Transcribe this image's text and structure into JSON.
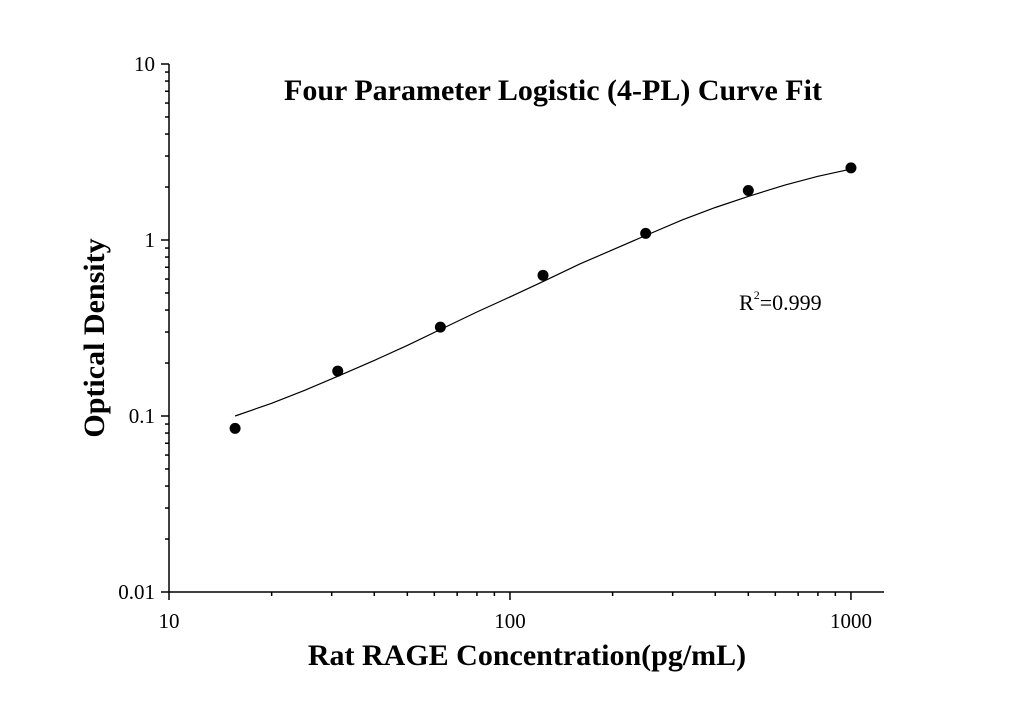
{
  "chart_data": {
    "type": "scatter",
    "title": "Four Parameter Logistic (4-PL) Curve Fit",
    "xlabel": "Rat RAGE Concentration(pg/mL)",
    "ylabel": "Optical Density",
    "x_scale": "log",
    "y_scale": "log",
    "xlim": [
      10,
      1250
    ],
    "ylim": [
      0.01,
      10
    ],
    "x_ticks": [
      10,
      100,
      1000
    ],
    "x_tick_labels": [
      "10",
      "100",
      "1000"
    ],
    "y_ticks": [
      0.01,
      0.1,
      1,
      10
    ],
    "y_tick_labels": [
      "0.01",
      "0.1",
      "1",
      "10"
    ],
    "grid": false,
    "series": [
      {
        "x": [
          15.625,
          31.25,
          62.5,
          125,
          250,
          500,
          1000
        ],
        "y": [
          0.085,
          0.18,
          0.32,
          0.63,
          1.09,
          1.91,
          2.57
        ]
      }
    ],
    "fit_curve": {
      "model": "4-PL",
      "x_range": [
        15.625,
        1000
      ],
      "points": [
        [
          15.625,
          0.1
        ],
        [
          20,
          0.118
        ],
        [
          25,
          0.14
        ],
        [
          31.25,
          0.168
        ],
        [
          40,
          0.207
        ],
        [
          50,
          0.252
        ],
        [
          62.5,
          0.31
        ],
        [
          80,
          0.39
        ],
        [
          100,
          0.475
        ],
        [
          125,
          0.58
        ],
        [
          160,
          0.73
        ],
        [
          200,
          0.88
        ],
        [
          250,
          1.06
        ],
        [
          320,
          1.3
        ],
        [
          400,
          1.53
        ],
        [
          500,
          1.77
        ],
        [
          640,
          2.05
        ],
        [
          800,
          2.3
        ],
        [
          1000,
          2.53
        ]
      ]
    },
    "annotation": {
      "text_base": "R",
      "text_sup": "2",
      "text_value": "=0.999"
    },
    "colors": {
      "points": "#000000",
      "curve": "#000000",
      "axes": "#000000"
    }
  }
}
